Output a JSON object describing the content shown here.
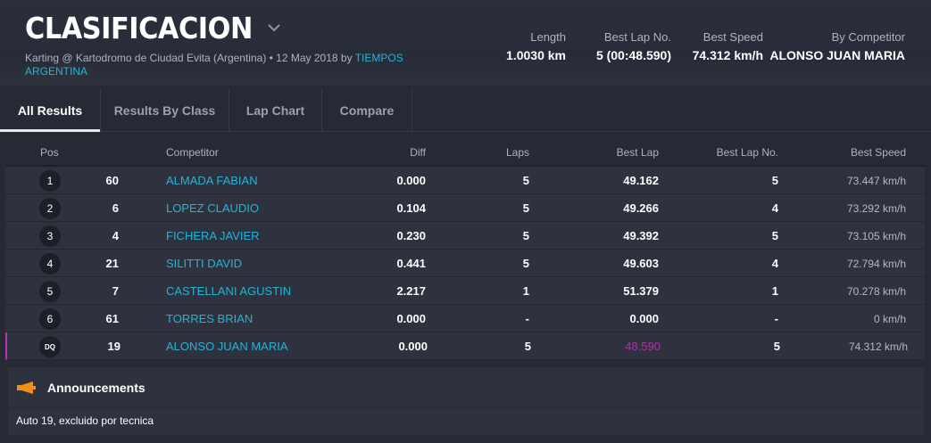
{
  "header": {
    "title": "CLASIFICACION",
    "subtitle": "Karting @ Kartodromo de Ciudad Evita (Argentina) • 12 May 2018 by",
    "organizer": "TIEMPOS ARGENTINA",
    "stats": [
      {
        "label": "Length",
        "value": "1.0030 km"
      },
      {
        "label": "Best Lap No.",
        "value": "5 (00:48.590)"
      },
      {
        "label": "Best Speed",
        "value": "74.312 km/h"
      },
      {
        "label": "By Competitor",
        "value": "ALONSO JUAN MARIA"
      }
    ]
  },
  "tabs": [
    {
      "label": "All Results",
      "active": true
    },
    {
      "label": "Results By Class",
      "active": false
    },
    {
      "label": "Lap Chart",
      "active": false
    },
    {
      "label": "Compare",
      "active": false
    }
  ],
  "table": {
    "columns": [
      "Pos",
      "Competitor",
      "Diff",
      "Laps",
      "Best Lap",
      "Best Lap No.",
      "Best Speed"
    ],
    "rows": [
      {
        "pos": "1",
        "number": "60",
        "competitor": "ALMADA FABIAN",
        "diff": "0.000",
        "laps": "5",
        "best_lap": "49.162",
        "best_lap_no": "5",
        "best_speed": "73.447 km/h"
      },
      {
        "pos": "2",
        "number": "6",
        "competitor": "LOPEZ CLAUDIO",
        "diff": "0.104",
        "laps": "5",
        "best_lap": "49.266",
        "best_lap_no": "4",
        "best_speed": "73.292 km/h"
      },
      {
        "pos": "3",
        "number": "4",
        "competitor": "FICHERA JAVIER",
        "diff": "0.230",
        "laps": "5",
        "best_lap": "49.392",
        "best_lap_no": "5",
        "best_speed": "73.105 km/h"
      },
      {
        "pos": "4",
        "number": "21",
        "competitor": "SILITTI DAVID",
        "diff": "0.441",
        "laps": "5",
        "best_lap": "49.603",
        "best_lap_no": "4",
        "best_speed": "72.794 km/h"
      },
      {
        "pos": "5",
        "number": "7",
        "competitor": "CASTELLANI AGUSTIN",
        "diff": "2.217",
        "laps": "1",
        "best_lap": "51.379",
        "best_lap_no": "1",
        "best_speed": "70.278 km/h"
      },
      {
        "pos": "6",
        "number": "61",
        "competitor": "TORRES BRIAN",
        "diff": "0.000",
        "laps": "-",
        "best_lap": "0.000",
        "best_lap_no": "-",
        "best_speed": "0 km/h"
      },
      {
        "pos": "DQ",
        "number": "19",
        "competitor": "ALONSO JUAN MARIA",
        "diff": "0.000",
        "laps": "5",
        "best_lap": "48.590",
        "best_lap_no": "5",
        "best_speed": "74.312 km/h"
      }
    ]
  },
  "announcements": {
    "title": "Announcements",
    "text": "Auto 19, excluido por tecnica"
  },
  "colors": {
    "background": "#262a35",
    "row": "#2e323e",
    "link": "#27b2d6",
    "best_lap_highlight": "#b52ead",
    "dq_marker": "#c22fb6",
    "announcement_icon": "#f0901c"
  },
  "icons": {
    "title_dropdown": "chevron-down-icon",
    "announcements": "megaphone-icon"
  }
}
